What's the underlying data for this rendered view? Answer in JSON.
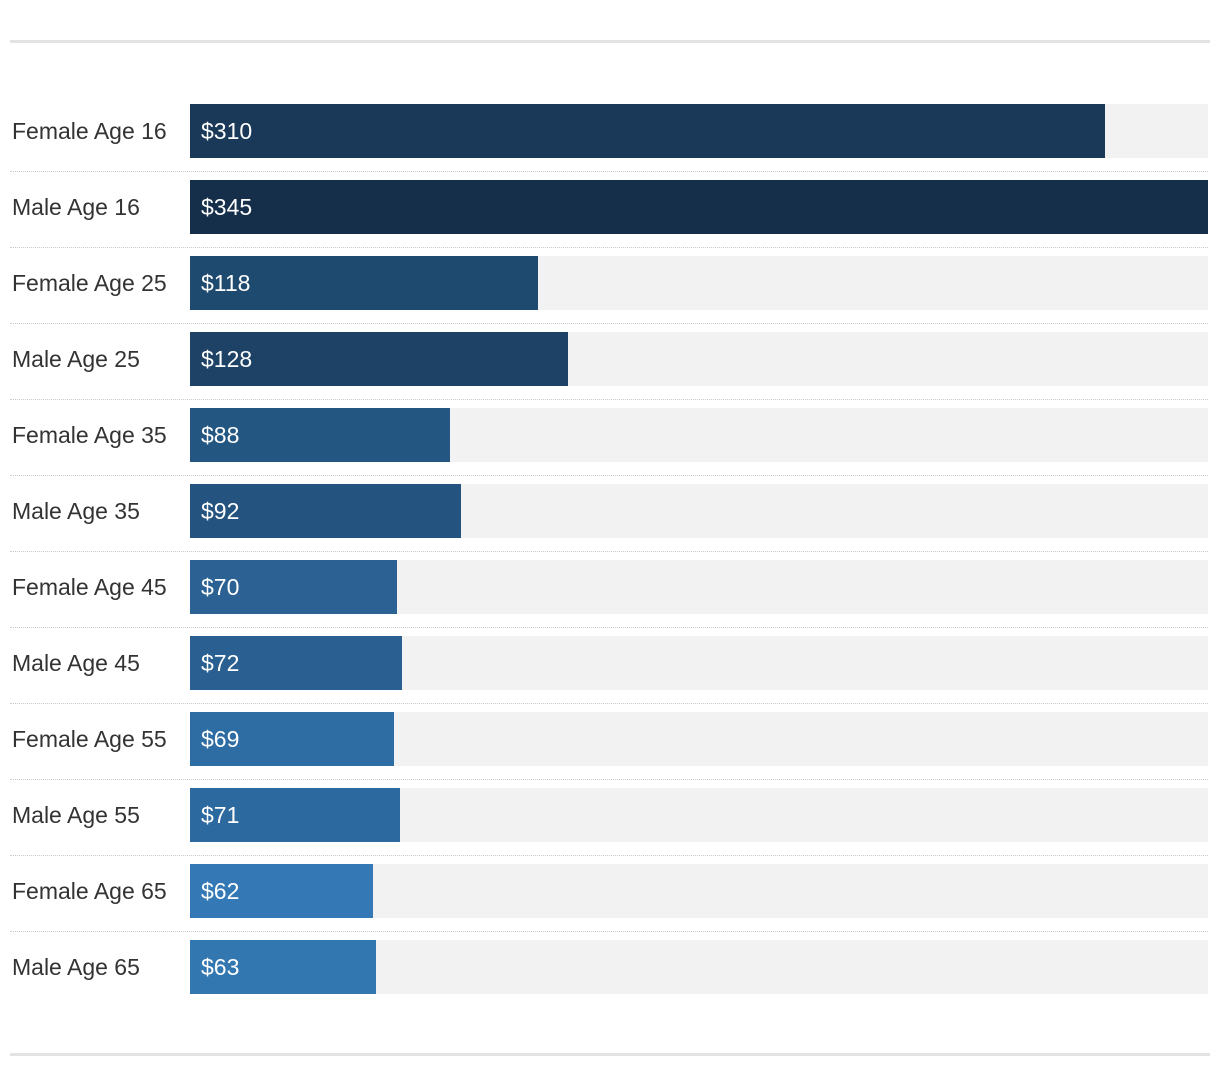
{
  "chart_data": {
    "type": "bar",
    "orientation": "horizontal",
    "categories": [
      "Female Age 16",
      "Male Age 16",
      "Female Age 25",
      "Male Age 25",
      "Female Age 35",
      "Male Age 35",
      "Female Age 45",
      "Male Age 45",
      "Female Age 55",
      "Male Age 55",
      "Female Age 65",
      "Male Age 65"
    ],
    "values": [
      310,
      345,
      118,
      128,
      88,
      92,
      70,
      72,
      69,
      71,
      62,
      63
    ],
    "value_labels": [
      "$310",
      "$345",
      "$118",
      "$128",
      "$88",
      "$92",
      "$70",
      "$72",
      "$69",
      "$71",
      "$62",
      "$63"
    ],
    "bar_colors": [
      "#1a3857",
      "#152e49",
      "#1f4a6f",
      "#1d4266",
      "#245682",
      "#23537e",
      "#2b6293",
      "#2a6091",
      "#2e6da3",
      "#2c699e",
      "#3479b5",
      "#3377b1"
    ],
    "track_color": "#f2f2f2",
    "title": "",
    "xlabel": "",
    "ylabel": "",
    "xlim": [
      0,
      345
    ],
    "grid": false,
    "legend": "none"
  }
}
